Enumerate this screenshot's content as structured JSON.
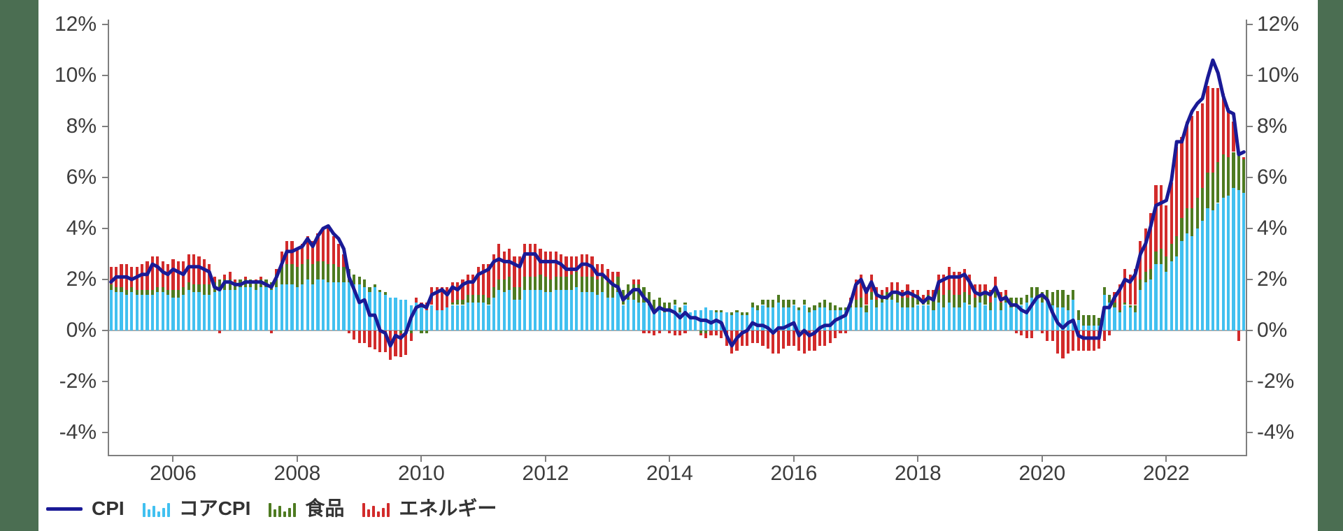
{
  "page": {
    "background_color": "#ffffff",
    "side_band_color": "#4B6E52"
  },
  "axes": {
    "y_tick_values": [
      12,
      10,
      8,
      6,
      4,
      2,
      0,
      -2,
      -4
    ],
    "y_tick_labels": [
      "12%",
      "10%",
      "8%",
      "6%",
      "4%",
      "2%",
      "0%",
      "-2%",
      "-4%"
    ],
    "x_tick_years": [
      2006,
      2008,
      2010,
      2012,
      2014,
      2016,
      2018,
      2020,
      2022
    ],
    "x_tick_labels": [
      "2006",
      "2008",
      "2010",
      "2012",
      "2014",
      "2016",
      "2018",
      "2020",
      "2022"
    ],
    "axis_color": "#7f7f7f",
    "zero_line_color": "#b0b0b0"
  },
  "legend": [
    {
      "label": "CPI",
      "swatch": "line",
      "color": "#1A1A96"
    },
    {
      "label": "コアCPI",
      "swatch": "bars",
      "color": "#41C0F0"
    },
    {
      "label": "食品",
      "swatch": "bars",
      "color": "#4E7B21"
    },
    {
      "label": "エネルギー",
      "swatch": "bars",
      "color": "#D22B2B"
    }
  ],
  "chart_data": {
    "type": "bar",
    "stacked": true,
    "line_overlay": "CPI",
    "frequency": "monthly",
    "start_month": "2005-01",
    "end_month": "2023-04",
    "ylim": [
      -4.9,
      12.2
    ],
    "grid": false,
    "legend_position": "bottom-left",
    "series": [
      {
        "name": "CPI",
        "type": "line",
        "color": "#1A1A96",
        "values": [
          1.9,
          2.1,
          2.1,
          2.1,
          2.0,
          2.1,
          2.2,
          2.2,
          2.6,
          2.5,
          2.3,
          2.2,
          2.4,
          2.3,
          2.2,
          2.5,
          2.5,
          2.5,
          2.4,
          2.3,
          1.7,
          1.6,
          1.9,
          1.9,
          1.8,
          1.8,
          1.9,
          1.9,
          1.9,
          1.9,
          1.8,
          1.7,
          2.1,
          2.6,
          3.1,
          3.1,
          3.2,
          3.3,
          3.6,
          3.3,
          3.7,
          4.0,
          4.1,
          3.8,
          3.6,
          3.2,
          2.1,
          1.6,
          1.1,
          1.2,
          0.6,
          0.6,
          0.0,
          -0.1,
          -0.6,
          -0.2,
          -0.3,
          -0.1,
          0.5,
          0.9,
          1.0,
          0.9,
          1.4,
          1.5,
          1.6,
          1.4,
          1.7,
          1.6,
          1.8,
          1.9,
          1.9,
          2.2,
          2.3,
          2.4,
          2.7,
          2.8,
          2.7,
          2.7,
          2.6,
          2.5,
          3.0,
          3.0,
          3.0,
          2.7,
          2.7,
          2.7,
          2.7,
          2.6,
          2.4,
          2.4,
          2.4,
          2.6,
          2.6,
          2.5,
          2.2,
          2.2,
          2.0,
          1.8,
          1.7,
          1.2,
          1.4,
          1.6,
          1.6,
          1.3,
          1.1,
          0.7,
          0.9,
          0.8,
          0.8,
          0.7,
          0.5,
          0.7,
          0.5,
          0.5,
          0.4,
          0.4,
          0.3,
          0.4,
          0.3,
          -0.2,
          -0.6,
          -0.3,
          -0.1,
          0.0,
          0.3,
          0.2,
          0.2,
          0.1,
          -0.1,
          0.1,
          0.1,
          0.2,
          0.3,
          -0.2,
          0.0,
          -0.2,
          -0.1,
          0.1,
          0.2,
          0.2,
          0.4,
          0.5,
          0.6,
          1.1,
          1.8,
          2.0,
          1.5,
          1.9,
          1.4,
          1.3,
          1.3,
          1.5,
          1.5,
          1.4,
          1.5,
          1.4,
          1.3,
          1.1,
          1.3,
          1.2,
          1.9,
          2.0,
          2.1,
          2.1,
          2.1,
          2.2,
          1.9,
          1.5,
          1.4,
          1.5,
          1.4,
          1.7,
          1.2,
          1.3,
          1.0,
          1.0,
          0.8,
          0.7,
          1.0,
          1.3,
          1.4,
          1.2,
          0.7,
          0.3,
          0.1,
          0.3,
          0.4,
          -0.2,
          -0.3,
          -0.3,
          -0.3,
          -0.3,
          0.9,
          0.9,
          1.3,
          1.6,
          2.0,
          1.9,
          2.2,
          3.0,
          3.4,
          4.1,
          4.9,
          5.0,
          5.1,
          5.9,
          7.4,
          7.4,
          8.1,
          8.6,
          8.9,
          9.1,
          9.9,
          10.6,
          10.1,
          9.2,
          8.6,
          8.5,
          6.9,
          7.0
        ]
      },
      {
        "name": "コアCPI",
        "type": "bar",
        "color": "#41C0F0",
        "values": [
          1.6,
          1.5,
          1.5,
          1.4,
          1.5,
          1.4,
          1.4,
          1.4,
          1.4,
          1.5,
          1.5,
          1.4,
          1.3,
          1.3,
          1.4,
          1.6,
          1.5,
          1.5,
          1.4,
          1.4,
          1.5,
          1.6,
          1.6,
          1.6,
          1.6,
          1.7,
          1.7,
          1.7,
          1.6,
          1.7,
          1.7,
          1.6,
          1.7,
          1.8,
          1.8,
          1.8,
          1.7,
          1.8,
          2.0,
          1.8,
          2.0,
          2.0,
          1.9,
          1.9,
          1.9,
          1.9,
          1.9,
          1.8,
          1.8,
          1.7,
          1.5,
          1.7,
          1.5,
          1.4,
          1.3,
          1.3,
          1.2,
          1.2,
          1.0,
          1.1,
          0.9,
          0.8,
          1.0,
          0.8,
          0.8,
          0.9,
          1.0,
          1.0,
          1.0,
          1.1,
          1.1,
          1.1,
          1.1,
          1.0,
          1.3,
          1.6,
          1.5,
          1.6,
          1.2,
          1.2,
          1.6,
          1.6,
          1.6,
          1.6,
          1.5,
          1.5,
          1.6,
          1.6,
          1.6,
          1.6,
          1.7,
          1.5,
          1.5,
          1.5,
          1.4,
          1.5,
          1.3,
          1.3,
          1.5,
          1.0,
          1.2,
          1.2,
          1.1,
          1.1,
          1.0,
          0.8,
          0.9,
          0.7,
          0.8,
          1.0,
          0.7,
          1.0,
          0.7,
          0.8,
          0.8,
          0.9,
          0.8,
          0.7,
          0.7,
          0.7,
          0.6,
          0.7,
          0.6,
          0.6,
          0.9,
          0.8,
          1.0,
          0.9,
          0.9,
          1.1,
          0.9,
          0.9,
          1.0,
          0.8,
          1.0,
          0.7,
          0.8,
          0.9,
          0.9,
          0.8,
          0.8,
          0.8,
          0.8,
          0.9,
          0.9,
          0.9,
          0.7,
          1.2,
          0.9,
          1.1,
          1.2,
          1.2,
          1.1,
          0.9,
          0.9,
          0.9,
          1.0,
          1.0,
          1.0,
          0.8,
          1.1,
          0.9,
          1.1,
          0.9,
          0.9,
          1.1,
          1.0,
          0.9,
          1.1,
          1.0,
          0.8,
          1.3,
          0.8,
          1.1,
          0.9,
          0.9,
          1.0,
          1.1,
          1.3,
          1.3,
          1.1,
          1.2,
          1.0,
          0.9,
          0.9,
          0.8,
          1.2,
          0.4,
          0.2,
          0.2,
          0.2,
          0.2,
          1.4,
          1.1,
          0.9,
          0.7,
          1.0,
          0.9,
          0.7,
          1.6,
          1.9,
          2.0,
          2.6,
          2.6,
          2.3,
          2.7,
          2.9,
          3.5,
          3.8,
          3.7,
          4.0,
          4.3,
          4.8,
          4.7,
          5.0,
          5.2,
          5.3,
          5.6,
          5.5,
          5.4
        ]
      },
      {
        "name": "食品",
        "type": "bar",
        "color": "#4E7B21",
        "values": [
          0.2,
          0.2,
          0.2,
          0.2,
          0.2,
          0.2,
          0.2,
          0.2,
          0.2,
          0.2,
          0.2,
          0.2,
          0.3,
          0.3,
          0.3,
          0.3,
          0.3,
          0.3,
          0.4,
          0.4,
          0.4,
          0.4,
          0.4,
          0.4,
          0.3,
          0.3,
          0.3,
          0.3,
          0.3,
          0.3,
          0.3,
          0.3,
          0.5,
          0.7,
          0.8,
          0.8,
          0.8,
          0.8,
          0.8,
          0.8,
          0.7,
          0.7,
          0.7,
          0.7,
          0.6,
          0.6,
          0.5,
          0.4,
          0.3,
          0.3,
          0.2,
          0.1,
          0.1,
          0.1,
          0.0,
          0.0,
          -0.1,
          -0.1,
          -0.1,
          0.0,
          -0.1,
          -0.1,
          0.0,
          0.0,
          0.0,
          0.0,
          0.1,
          0.2,
          0.2,
          0.3,
          0.3,
          0.3,
          0.3,
          0.3,
          0.4,
          0.4,
          0.5,
          0.5,
          0.5,
          0.5,
          0.5,
          0.5,
          0.5,
          0.6,
          0.6,
          0.5,
          0.5,
          0.5,
          0.5,
          0.6,
          0.6,
          0.6,
          0.6,
          0.6,
          0.6,
          0.6,
          0.6,
          0.6,
          0.6,
          0.6,
          0.6,
          0.6,
          0.7,
          0.6,
          0.5,
          0.4,
          0.4,
          0.4,
          0.3,
          0.2,
          0.2,
          0.1,
          0.0,
          0.0,
          -0.1,
          -0.1,
          0.0,
          0.1,
          0.1,
          0.0,
          0.1,
          0.1,
          0.1,
          0.1,
          0.2,
          0.2,
          0.2,
          0.3,
          0.3,
          0.3,
          0.3,
          0.3,
          0.2,
          0.1,
          0.2,
          0.2,
          0.2,
          0.2,
          0.3,
          0.3,
          0.2,
          0.1,
          0.1,
          0.2,
          0.3,
          0.4,
          0.3,
          0.3,
          0.3,
          0.3,
          0.3,
          0.3,
          0.4,
          0.4,
          0.4,
          0.4,
          0.4,
          0.2,
          0.4,
          0.5,
          0.5,
          0.5,
          0.5,
          0.5,
          0.5,
          0.4,
          0.4,
          0.4,
          0.4,
          0.4,
          0.3,
          0.3,
          0.3,
          0.3,
          0.4,
          0.4,
          0.3,
          0.3,
          0.4,
          0.4,
          0.4,
          0.4,
          0.5,
          0.7,
          0.7,
          0.6,
          0.4,
          0.4,
          0.4,
          0.4,
          0.4,
          0.3,
          0.3,
          0.3,
          0.2,
          0.1,
          0.1,
          0.1,
          0.3,
          0.4,
          0.4,
          0.4,
          0.5,
          0.6,
          0.6,
          0.7,
          0.8,
          0.9,
          1.0,
          1.1,
          1.2,
          1.3,
          1.4,
          1.5,
          1.6,
          1.7,
          1.5,
          1.4,
          1.4,
          1.3
        ]
      },
      {
        "name": "エネルギー",
        "type": "bar",
        "color": "#D22B2B",
        "values": [
          0.7,
          0.8,
          0.9,
          1.0,
          0.8,
          0.9,
          1.0,
          1.1,
          1.3,
          1.2,
          1.0,
          1.0,
          1.2,
          1.1,
          1.0,
          1.1,
          1.2,
          1.1,
          1.0,
          0.8,
          0.2,
          -0.1,
          0.2,
          0.3,
          0.1,
          0.0,
          0.1,
          0.0,
          0.1,
          0.1,
          0.0,
          -0.1,
          0.2,
          0.6,
          0.9,
          0.9,
          0.7,
          0.8,
          0.9,
          0.9,
          1.1,
          1.3,
          1.4,
          1.1,
          0.9,
          0.5,
          -0.1,
          -0.35,
          -0.5,
          -0.5,
          -0.65,
          -0.75,
          -0.85,
          -0.85,
          -1.15,
          -1.0,
          -0.95,
          -0.85,
          -0.3,
          0.2,
          0.2,
          0.3,
          0.7,
          0.9,
          0.9,
          0.8,
          0.8,
          0.7,
          0.8,
          0.8,
          0.8,
          1.1,
          1.2,
          1.3,
          1.3,
          1.4,
          1.1,
          1.1,
          1.2,
          1.2,
          1.3,
          1.3,
          1.3,
          1.0,
          1.0,
          1.1,
          1.0,
          0.9,
          0.8,
          0.7,
          0.6,
          0.9,
          0.9,
          0.8,
          0.6,
          0.5,
          0.5,
          0.4,
          0.2,
          0.0,
          0.0,
          0.2,
          0.2,
          -0.1,
          -0.1,
          -0.2,
          -0.1,
          0.0,
          -0.1,
          -0.2,
          -0.2,
          -0.1,
          0.0,
          0.0,
          -0.1,
          -0.2,
          -0.2,
          -0.2,
          -0.3,
          -0.6,
          -0.9,
          -0.8,
          -0.6,
          -0.6,
          -0.5,
          -0.5,
          -0.6,
          -0.7,
          -0.9,
          -0.9,
          -0.7,
          -0.6,
          -0.6,
          -0.8,
          -0.9,
          -0.8,
          -0.8,
          -0.6,
          -0.6,
          -0.5,
          -0.3,
          -0.1,
          -0.1,
          0.2,
          0.8,
          0.9,
          0.7,
          0.7,
          0.5,
          0.2,
          0.2,
          0.4,
          0.4,
          0.3,
          0.5,
          0.3,
          0.2,
          0.2,
          0.2,
          0.3,
          0.6,
          0.8,
          0.9,
          0.9,
          0.9,
          0.9,
          0.8,
          0.5,
          0.3,
          0.4,
          0.5,
          0.5,
          0.4,
          0.2,
          0.0,
          -0.1,
          -0.2,
          -0.3,
          -0.3,
          0.0,
          -0.1,
          -0.4,
          -0.4,
          -0.9,
          -1.1,
          -0.9,
          -0.8,
          -0.8,
          -0.8,
          -0.8,
          -0.8,
          -0.7,
          -0.4,
          -0.2,
          0.4,
          1.0,
          1.3,
          1.2,
          1.4,
          1.5,
          1.7,
          2.2,
          2.6,
          2.5,
          2.0,
          2.4,
          3.5,
          3.2,
          3.4,
          3.6,
          3.4,
          3.3,
          3.4,
          3.3,
          2.9,
          2.4,
          1.9,
          1.2,
          -0.4,
          0.1
        ]
      }
    ]
  }
}
